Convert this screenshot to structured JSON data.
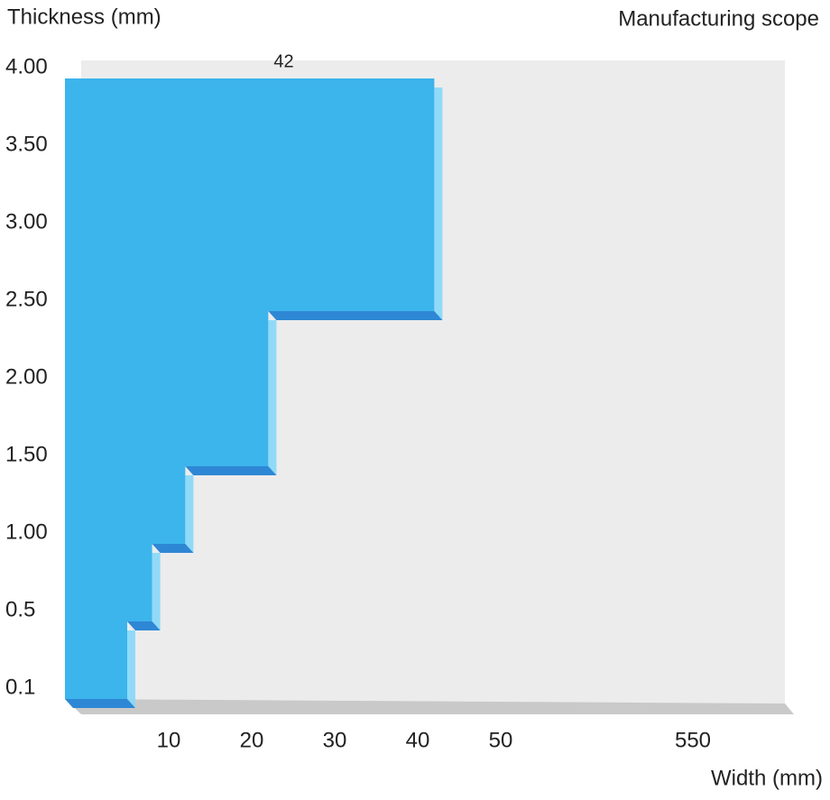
{
  "chart_data": {
    "type": "step",
    "title": "Manufacturing scope",
    "ylabel": "Thickness (mm)",
    "xlabel": "Width (mm)",
    "color": "#3cb4ec",
    "background": "#ececec",
    "steps": {
      "thickness": [
        0.5,
        1,
        1.5,
        2.5,
        4
      ],
      "width": [
        5,
        8,
        12,
        22,
        42
      ]
    },
    "yticks": [
      0.1,
      0.5,
      {
        "value": 1,
        "label": "1.00"
      },
      {
        "value": 1.5,
        "label": "1.50"
      },
      {
        "value": 2,
        "label": "2.00"
      },
      {
        "value": 2.5,
        "label": "2.50"
      },
      {
        "value": 3,
        "label": "3.00"
      },
      {
        "value": 3.5,
        "label": "3.50"
      },
      {
        "value": 4,
        "label": "4.00"
      }
    ],
    "xticks": [
      10,
      20,
      30,
      40,
      50,
      550
    ]
  }
}
